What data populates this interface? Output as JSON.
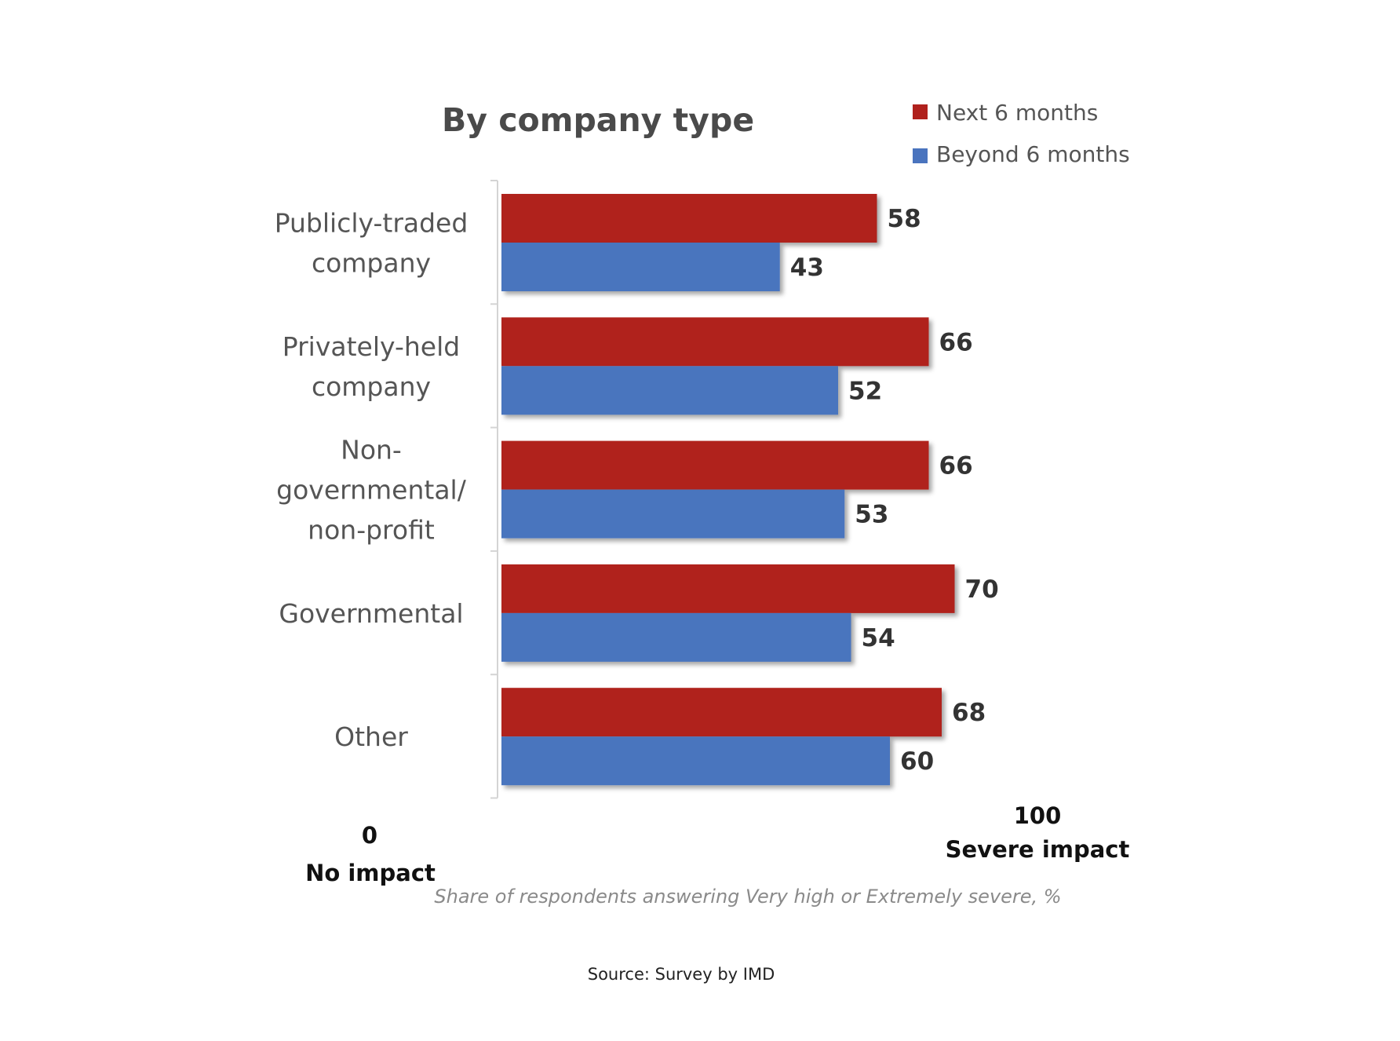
{
  "chart_data": {
    "type": "bar",
    "orientation": "horizontal",
    "title": "By company type",
    "categories": [
      [
        "Publicly-traded",
        "company"
      ],
      [
        "Privately-held",
        "company"
      ],
      [
        "Non-",
        "governmental/",
        "non-profit"
      ],
      [
        "Governmental"
      ],
      [
        "Other"
      ]
    ],
    "series": [
      {
        "name": "Next 6 months",
        "color": "#B0211D",
        "values": [
          58,
          66,
          66,
          70,
          68
        ]
      },
      {
        "name": "Beyond 6 months",
        "color": "#4A74BE",
        "values": [
          43,
          52,
          53,
          54,
          60
        ]
      }
    ],
    "xlim": [
      0,
      100
    ],
    "legend_position": "top-right",
    "grid": false,
    "axis": {
      "min_value": "0",
      "min_label": "No impact",
      "max_value": "100",
      "max_label": "Severe impact"
    },
    "xlabel": "Share of respondents answering Very high or Extremely severe, %",
    "source": "Source: Survey by IMD"
  }
}
